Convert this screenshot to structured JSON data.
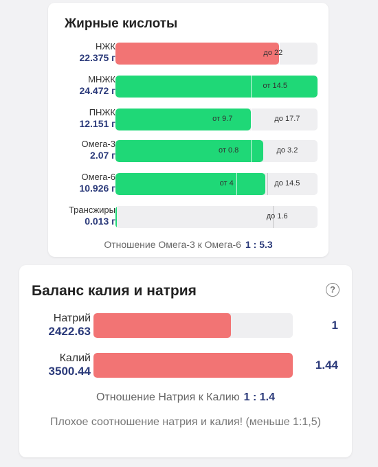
{
  "colors": {
    "red": "#f27474",
    "green": "#1fd877",
    "track": "#efeff1"
  },
  "fatty_acids": {
    "title": "Жирные кислоты",
    "rows": [
      {
        "name": "НЖК",
        "value": "22.375 г",
        "fill_fraction": 0.81,
        "color": "#f27474",
        "ranges": [
          {
            "text": "до 22",
            "pos": 0.78
          }
        ],
        "ticks": [
          0.81
        ]
      },
      {
        "name": "МНЖК",
        "value": "24.472 г",
        "fill_fraction": 1.0,
        "color": "#1fd877",
        "ranges": [
          {
            "text": "от 14.5",
            "pos": 0.79
          }
        ],
        "ticks": [
          0.67
        ]
      },
      {
        "name": "ПНЖК",
        "value": "12.151 г",
        "fill_fraction": 0.67,
        "color": "#1fd877",
        "ranges": [
          {
            "text": "от 9.7",
            "pos": 0.53
          },
          {
            "text": "до 17.7",
            "pos": 0.85
          }
        ],
        "ticks": [
          0.67
        ]
      },
      {
        "name": "Омега-3",
        "value": "2.07 г",
        "fill_fraction": 0.73,
        "color": "#1fd877",
        "ranges": [
          {
            "text": "от 0.8",
            "pos": 0.56
          },
          {
            "text": "до 3.2",
            "pos": 0.85
          }
        ],
        "ticks": [
          0.67
        ]
      },
      {
        "name": "Омега-6",
        "value": "10.926 г",
        "fill_fraction": 0.74,
        "color": "#1fd877",
        "ranges": [
          {
            "text": "от 4",
            "pos": 0.55
          },
          {
            "text": "до 14.5",
            "pos": 0.85
          }
        ],
        "ticks": [
          0.6,
          0.75
        ]
      },
      {
        "name": "Трансжиры",
        "value": "0.013 г",
        "fill_fraction": 0.008,
        "color": "#1fd877",
        "ranges": [
          {
            "text": "до 1.6",
            "pos": 0.8
          }
        ],
        "ticks": [
          0.78
        ]
      }
    ],
    "ratio_label": "Отношение Омега-3 к Омега-6",
    "ratio_value": "1 : 5.3"
  },
  "balance": {
    "title": "Баланс калия и натрия",
    "help_symbol": "?",
    "rows": [
      {
        "name": "Натрий",
        "value": "2422.63",
        "number": "1",
        "fill_fraction": 0.69
      },
      {
        "name": "Калий",
        "value": "3500.44",
        "number": "1.44",
        "fill_fraction": 1.0
      }
    ],
    "ratio_label": "Отношение Натрия к Калию",
    "ratio_value": "1 : 1.4",
    "warning": "Плохое соотношение натрия и калия! (меньше 1:1,5)"
  }
}
